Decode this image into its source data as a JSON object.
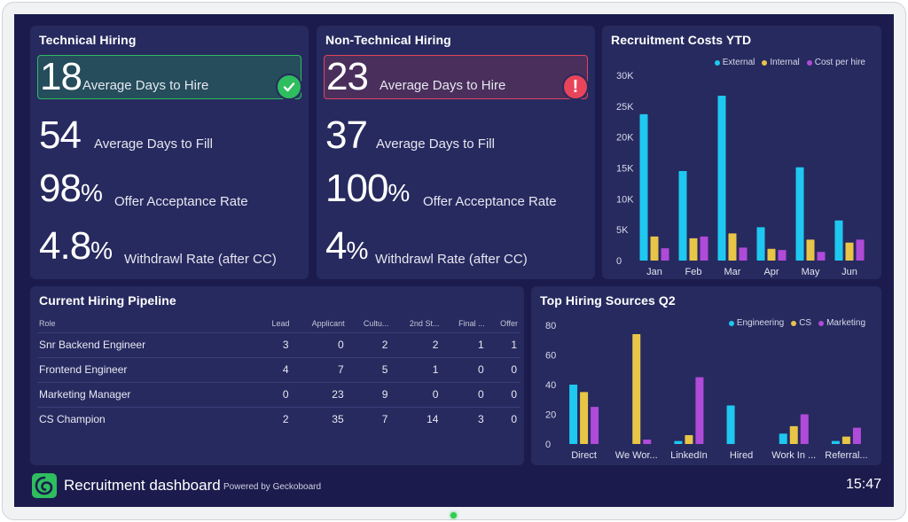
{
  "technical": {
    "title": "Technical Hiring",
    "kpis": [
      {
        "value": "18",
        "suffix": "",
        "label": "Average Days to Hire",
        "status": "ok"
      },
      {
        "value": "54",
        "suffix": "",
        "label": "Average Days to Fill"
      },
      {
        "value": "98",
        "suffix": "%",
        "label": "Offer Acceptance Rate"
      },
      {
        "value": "4.8",
        "suffix": "%",
        "label": "Withdrawl Rate (after CC)"
      }
    ]
  },
  "non_technical": {
    "title": "Non-Technical Hiring",
    "kpis": [
      {
        "value": "23",
        "suffix": "",
        "label": "Average Days to Hire",
        "status": "alert"
      },
      {
        "value": "37",
        "suffix": "",
        "label": "Average Days to Fill"
      },
      {
        "value": "100",
        "suffix": "%",
        "label": "Offer Acceptance Rate"
      },
      {
        "value": "4",
        "suffix": "%",
        "label": "Withdrawl Rate (after CC)"
      }
    ],
    "alert_symbol": "!"
  },
  "pipeline": {
    "title": "Current Hiring Pipeline",
    "columns": [
      "Role",
      "Lead",
      "Applicant",
      "Cultu...",
      "2nd St...",
      "Final ...",
      "Offer"
    ],
    "rows": [
      [
        "Snr Backend Engineer",
        "3",
        "0",
        "2",
        "2",
        "1",
        "1"
      ],
      [
        "Frontend Engineer",
        "4",
        "7",
        "5",
        "1",
        "0",
        "0"
      ],
      [
        "Marketing Manager",
        "0",
        "23",
        "9",
        "0",
        "0",
        "0"
      ],
      [
        "CS Champion",
        "2",
        "35",
        "7",
        "14",
        "3",
        "0"
      ]
    ]
  },
  "costs": {
    "title": "Recruitment Costs YTD",
    "legend": [
      "External",
      "Internal",
      "Cost per hire"
    ]
  },
  "sources": {
    "title": "Top Hiring Sources Q2",
    "legend": [
      "Engineering",
      "CS",
      "Marketing"
    ]
  },
  "footer": {
    "title": "Recruitment dashboard",
    "powered": "Powered by Geckoboard",
    "clock": "15:47"
  },
  "colors": {
    "background": "#1b1c4d",
    "panel": "#272a5f",
    "cyan": "#1ec8f0",
    "yellow": "#e8c547",
    "purple": "#b04ad8",
    "ok": "#2ebd5f",
    "alert": "#e8445a"
  },
  "chart_data": [
    {
      "type": "bar",
      "title": "Recruitment Costs YTD",
      "categories": [
        "Jan",
        "Feb",
        "Mar",
        "Apr",
        "May",
        "Jun"
      ],
      "y_ticks": [
        "0",
        "5K",
        "10K",
        "15K",
        "20K",
        "25K",
        "30K"
      ],
      "ylim": [
        0,
        30000
      ],
      "legend_position": "top-right",
      "series": [
        {
          "name": "External",
          "color": "#1ec8f0",
          "values": [
            23700,
            14500,
            26700,
            5400,
            15100,
            6500
          ]
        },
        {
          "name": "Internal",
          "color": "#e8c547",
          "values": [
            3900,
            3600,
            4400,
            1900,
            3400,
            2900
          ]
        },
        {
          "name": "Cost per hire",
          "color": "#b04ad8",
          "values": [
            2000,
            3900,
            2100,
            1700,
            1400,
            3400
          ]
        }
      ]
    },
    {
      "type": "bar",
      "title": "Top Hiring Sources Q2",
      "categories": [
        "Direct",
        "We Wor...",
        "LinkedIn",
        "Hired",
        "Work In ...",
        "Referral..."
      ],
      "y_ticks": [
        "0",
        "20",
        "40",
        "60",
        "80"
      ],
      "ylim": [
        0,
        80
      ],
      "legend_position": "top-right",
      "series": [
        {
          "name": "Engineering",
          "color": "#1ec8f0",
          "values": [
            40,
            0,
            2,
            26,
            7,
            2
          ]
        },
        {
          "name": "CS",
          "color": "#e8c547",
          "values": [
            35,
            74,
            6,
            0,
            12,
            5
          ]
        },
        {
          "name": "Marketing",
          "color": "#b04ad8",
          "values": [
            25,
            3,
            45,
            0,
            20,
            11
          ]
        }
      ]
    }
  ]
}
